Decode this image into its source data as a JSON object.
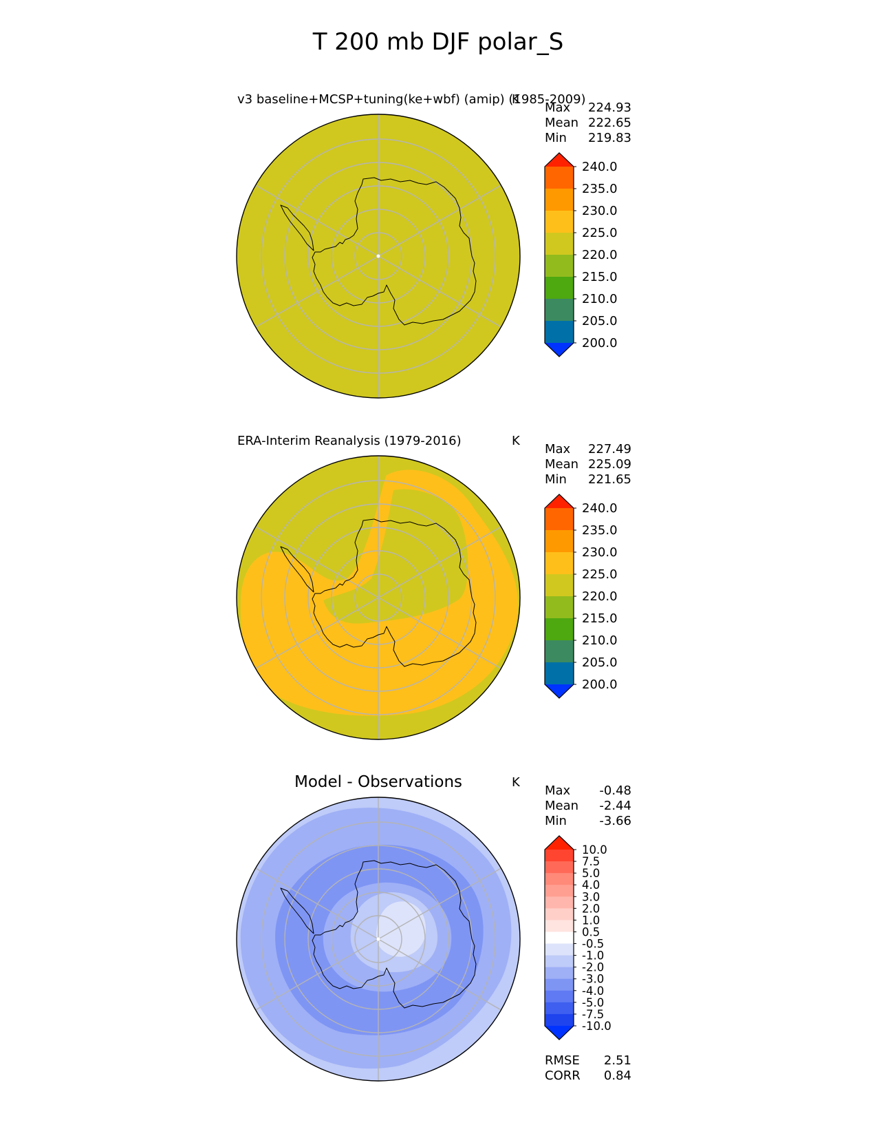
{
  "figure_title": "T 200 mb DJF polar_S",
  "chart_data": [
    {
      "type": "heatmap",
      "projection": "south-polar-stereographic",
      "title": "v3 baseline+MCSP+tuning(ke+wbf) (amip) (1985-2009)",
      "units": "K",
      "stats": [
        {
          "label": "Max",
          "value": "224.93"
        },
        {
          "label": "Mean",
          "value": "222.65"
        },
        {
          "label": "Min",
          "value": "219.83"
        }
      ],
      "colorbar": {
        "ticks": [
          "240.0",
          "235.0",
          "230.0",
          "225.0",
          "220.0",
          "215.0",
          "210.0",
          "205.0",
          "200.0"
        ],
        "colors": [
          "#ff2200",
          "#ff6600",
          "#ff9900",
          "#ffbf1a",
          "#d0c81f",
          "#92bb1e",
          "#4ea810",
          "#3c8a60",
          "#0071a8",
          "#0033ff"
        ],
        "extend": "both"
      },
      "field_description": "uniform 220-225 K across the domain"
    },
    {
      "type": "heatmap",
      "projection": "south-polar-stereographic",
      "title": "ERA-Interim Reanalysis (1979-2016)",
      "units": "K",
      "stats": [
        {
          "label": "Max",
          "value": "227.49"
        },
        {
          "label": "Mean",
          "value": "225.09"
        },
        {
          "label": "Min",
          "value": "221.65"
        }
      ],
      "colorbar": {
        "ticks": [
          "240.0",
          "235.0",
          "230.0",
          "225.0",
          "220.0",
          "215.0",
          "210.0",
          "205.0",
          "200.0"
        ],
        "colors": [
          "#ff2200",
          "#ff6600",
          "#ff9900",
          "#ffbf1a",
          "#d0c81f",
          "#92bb1e",
          "#4ea810",
          "#3c8a60",
          "#0071a8",
          "#0033ff"
        ],
        "extend": "both"
      },
      "field_description": "220-225 K background with a 225-230 K ring around Antarctica"
    },
    {
      "type": "heatmap",
      "projection": "south-polar-stereographic",
      "title": "Model - Observations",
      "units": "K",
      "stats": [
        {
          "label": "Max",
          "value": "-0.48"
        },
        {
          "label": "Mean",
          "value": "-2.44"
        },
        {
          "label": "Min",
          "value": "-3.66"
        }
      ],
      "metrics": [
        {
          "label": "RMSE",
          "value": "2.51"
        },
        {
          "label": "CORR",
          "value": "0.84"
        }
      ],
      "colorbar": {
        "ticks": [
          "10.0",
          "7.5",
          "5.0",
          "4.0",
          "3.0",
          "2.0",
          "1.0",
          "0.5",
          "-0.5",
          "-1.0",
          "-2.0",
          "-3.0",
          "-4.0",
          "-5.0",
          "-7.5",
          "-10.0"
        ],
        "colors": [
          "#ff2200",
          "#ff4430",
          "#ff6a58",
          "#ff8a7a",
          "#ff9f92",
          "#ffb6ac",
          "#ffcfc8",
          "#ffe4e0",
          "#ffffff",
          "#dde3fa",
          "#bfcbf8",
          "#9fb0f6",
          "#7f95f4",
          "#5f7af2",
          "#3f5ff0",
          "#1f44ee",
          "#0033ff"
        ],
        "extend": "both"
      },
      "field_description": "negative differences, -3 to -4 K band around the continent, near zero over the pole"
    }
  ]
}
